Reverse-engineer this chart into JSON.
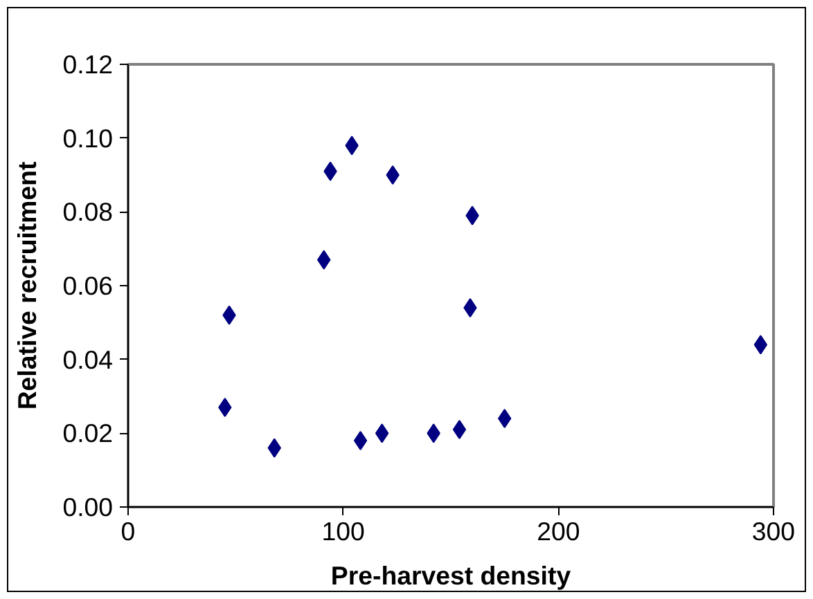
{
  "chart_data": {
    "type": "scatter",
    "xlabel": "Pre-harvest density",
    "ylabel": "Relative recruitment",
    "x": [
      47,
      45,
      68,
      91,
      94,
      104,
      123,
      160,
      159,
      108,
      118,
      142,
      154,
      175,
      294
    ],
    "series": [
      {
        "color": "#000080",
        "values": [
          0.052,
          0.027,
          0.016,
          0.067,
          0.091,
          0.098,
          0.09,
          0.079,
          0.054,
          0.018,
          0.02,
          0.02,
          0.021,
          0.024,
          0.044
        ]
      }
    ],
    "xlim": [
      0,
      300
    ],
    "xticks": [
      0,
      100,
      200,
      300
    ],
    "ylim": [
      0,
      0.12
    ],
    "yticks": [
      {
        "value": 0,
        "label": "0.00"
      },
      {
        "value": 0.02,
        "label": "0.02"
      },
      {
        "value": 0.04,
        "label": "0.04"
      },
      {
        "value": 0.06,
        "label": "0.06"
      },
      {
        "value": 0.08,
        "label": "0.08"
      },
      {
        "value": 0.1,
        "label": "0.10"
      },
      {
        "value": 0.12,
        "label": "0.12"
      }
    ],
    "grid": false,
    "marker": "diamond"
  }
}
